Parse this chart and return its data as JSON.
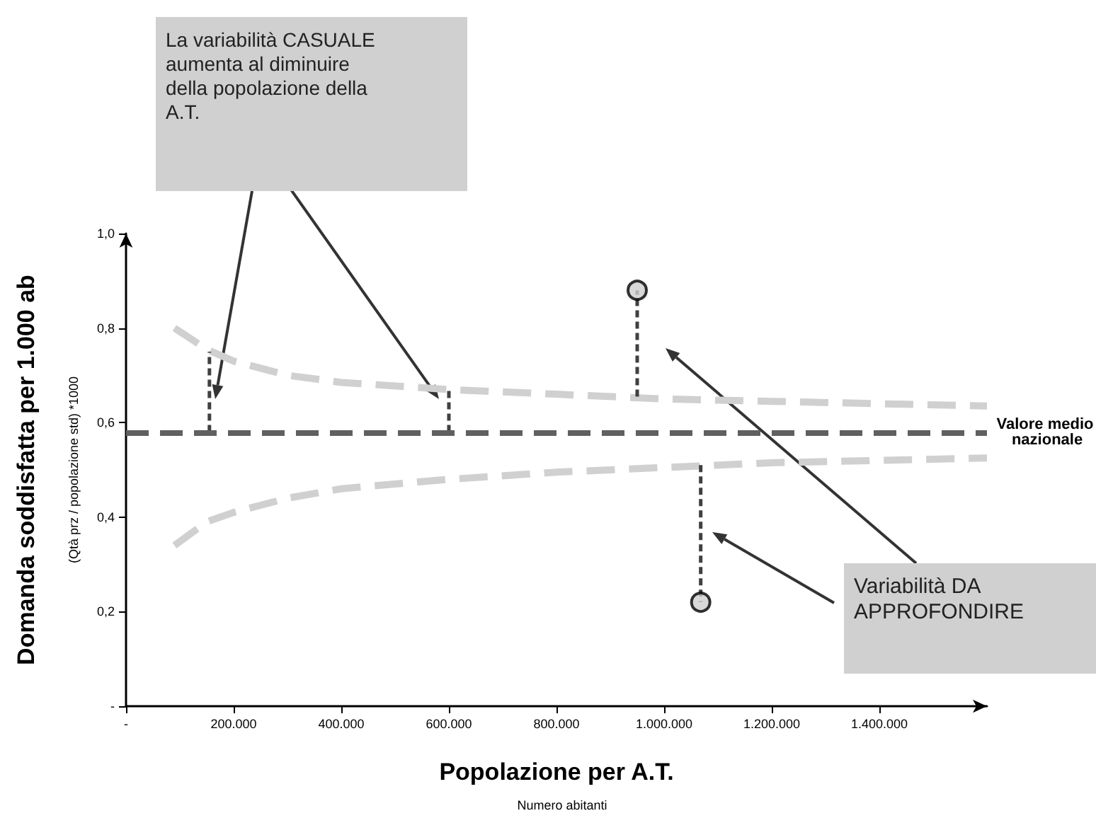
{
  "chart_data": {
    "type": "line",
    "ylabel": "Domanda soddisfatta per 1.000 ab",
    "xlabel": "Popolazione per A.T.",
    "annotations": [
      "(Qtà prz / popolazione std) *1000",
      "Numero abitanti",
      "La variabilità CASUALE aumenta al diminuire della popolazione della A.T.",
      "Variabilità DA APPROFONDIRE"
    ],
    "xlim": [
      0,
      1600000
    ],
    "ylim": [
      0,
      1
    ],
    "xticks": [
      {
        "value": 0,
        "label": "-"
      },
      {
        "value": 200000,
        "label": "200.000"
      },
      {
        "value": 400000,
        "label": "400.000"
      },
      {
        "value": 600000,
        "label": "600.000"
      },
      {
        "value": 800000,
        "label": "800.000"
      },
      {
        "value": 1000000,
        "label": "1.000.000"
      },
      {
        "value": 1200000,
        "label": "1.200.000"
      },
      {
        "value": 1400000,
        "label": "1.400.000"
      }
    ],
    "yticks": [
      {
        "value": 0,
        "label": "-"
      },
      {
        "value": 0.2,
        "label": "0,2"
      },
      {
        "value": 0.4,
        "label": "0,4"
      },
      {
        "value": 0.6,
        "label": "0,6"
      },
      {
        "value": 0.8,
        "label": "0,8"
      },
      {
        "value": 1,
        "label": "1,0"
      }
    ],
    "grid": false,
    "series": [
      {
        "color": "#d0d0d0",
        "line_style": "dashed",
        "marker": "none",
        "x": [
          90000,
          150000,
          200000,
          300000,
          400000,
          600000,
          800000,
          1000000,
          1200000,
          1400000,
          1600000
        ],
        "values": [
          0.8,
          0.755,
          0.73,
          0.7,
          0.685,
          0.67,
          0.66,
          0.65,
          0.645,
          0.64,
          0.635
        ]
      },
      {
        "color": "#d0d0d0",
        "line_style": "dashed",
        "marker": "none",
        "x": [
          90000,
          150000,
          200000,
          300000,
          400000,
          600000,
          800000,
          1000000,
          1200000,
          1400000,
          1600000
        ],
        "values": [
          0.34,
          0.39,
          0.41,
          0.44,
          0.46,
          0.48,
          0.495,
          0.505,
          0.515,
          0.52,
          0.525
        ]
      },
      {
        "color": "#404040",
        "line_style": "dashed",
        "marker": "none",
        "x": [
          155000,
          155000
        ],
        "values": [
          0.58,
          0.75
        ]
      },
      {
        "color": "#404040",
        "line_style": "dashed",
        "marker": "none",
        "x": [
          600000,
          600000
        ],
        "values": [
          0.58,
          0.67
        ]
      },
      {
        "color": "#404040",
        "line_style": "dashed",
        "marker": "none",
        "x": [
          950000,
          950000
        ],
        "values": [
          0.655,
          0.88
        ]
      },
      {
        "color": "#404040",
        "line_style": "dashed",
        "marker": "none",
        "x": [
          1068000,
          1068000
        ],
        "values": [
          0.51,
          0.22
        ]
      },
      {
        "type": "scatter",
        "color": "#d0d0d0",
        "marker": "circle",
        "x": [
          950000,
          1068000
        ],
        "values": [
          0.88,
          0.22
        ]
      }
    ],
    "ref_lines": [
      {
        "axis": "y",
        "value": 0.58,
        "label": "Valore medio nazionale",
        "color": "#606060",
        "line_style": "dashed"
      }
    ]
  }
}
